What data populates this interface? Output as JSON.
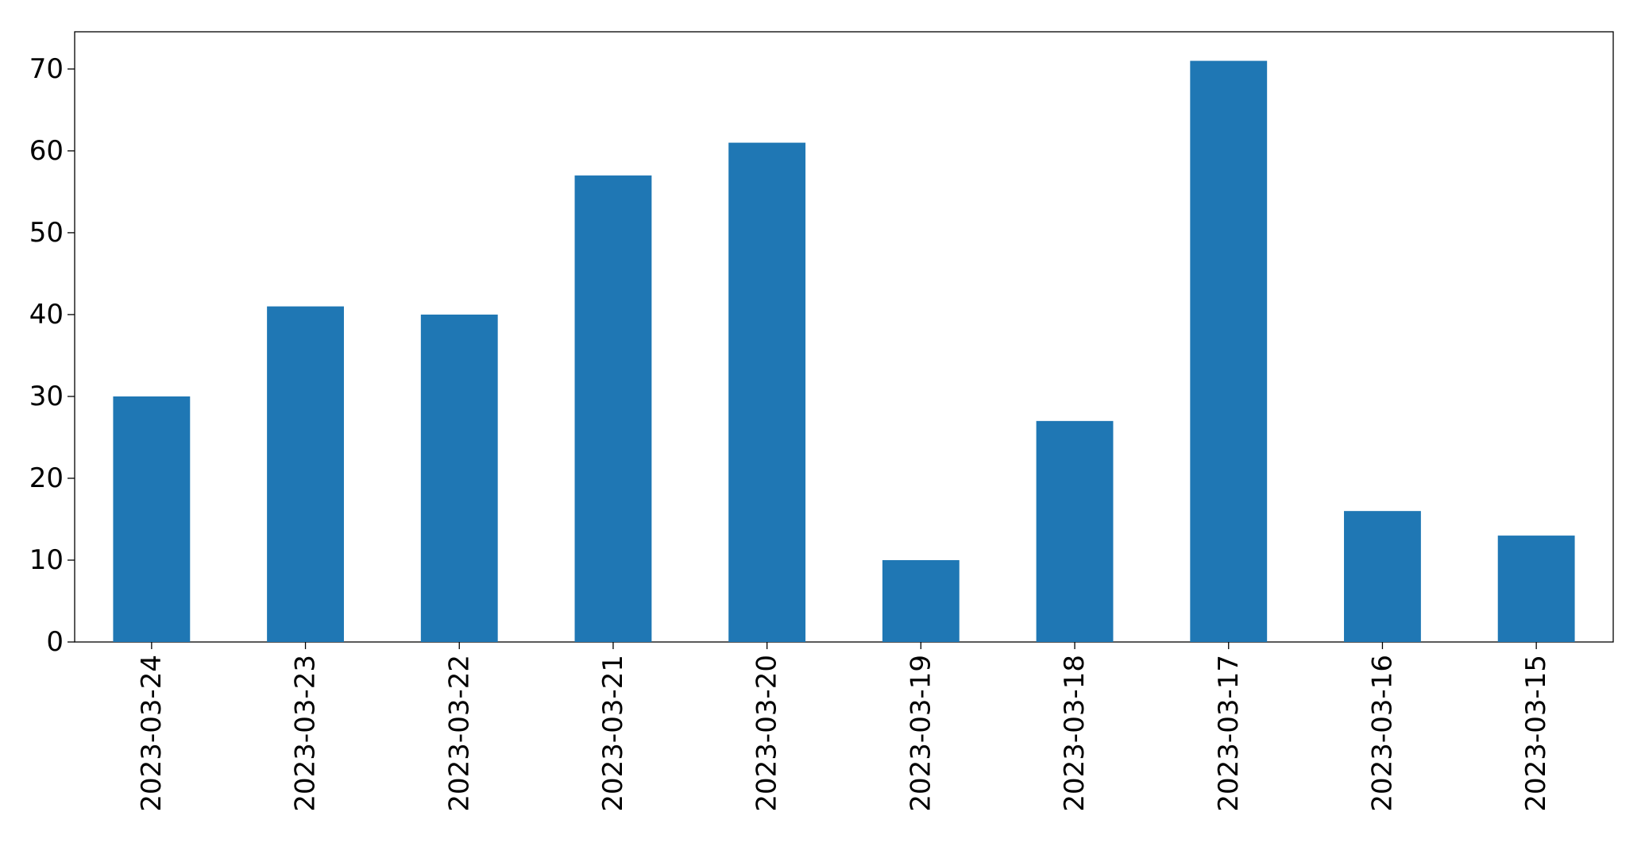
{
  "chart_data": {
    "type": "bar",
    "categories": [
      "2023-03-24",
      "2023-03-23",
      "2023-03-22",
      "2023-03-21",
      "2023-03-20",
      "2023-03-19",
      "2023-03-18",
      "2023-03-17",
      "2023-03-16",
      "2023-03-15"
    ],
    "values": [
      30,
      41,
      40,
      57,
      61,
      10,
      27,
      71,
      16,
      13
    ],
    "color": "#1f77b4",
    "ylim": [
      0,
      74.55
    ],
    "yticks": [
      0,
      10,
      20,
      30,
      40,
      50,
      60,
      70
    ],
    "grid": false
  }
}
